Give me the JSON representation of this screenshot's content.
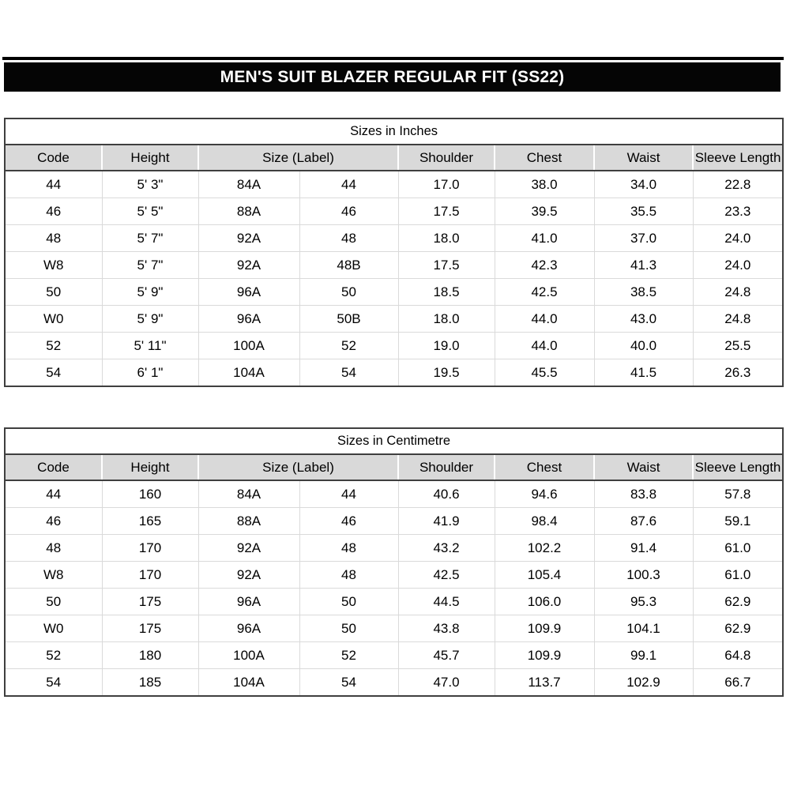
{
  "page": {
    "title": "MEN'S SUIT BLAZER REGULAR FIT (SS22)"
  },
  "colors": {
    "title_bar_bg": "#050505",
    "title_text": "#ffffff",
    "header_row_bg": "#d9d9d9",
    "grid_line": "#dadada",
    "dark_border": "#3f3f3f"
  },
  "tables": [
    {
      "caption": "Sizes in Inches",
      "headers": [
        {
          "label": "Code",
          "span": 1
        },
        {
          "label": "Height",
          "span": 1
        },
        {
          "label": "Size (Label)",
          "span": 2
        },
        {
          "label": "Shoulder",
          "span": 1
        },
        {
          "label": "Chest",
          "span": 1
        },
        {
          "label": "Waist",
          "span": 1
        },
        {
          "label": "Sleeve Length",
          "span": 1
        }
      ],
      "rows": [
        [
          "44",
          "5' 3\"",
          "84A",
          "44",
          "17.0",
          "38.0",
          "34.0",
          "22.8"
        ],
        [
          "46",
          "5' 5\"",
          "88A",
          "46",
          "17.5",
          "39.5",
          "35.5",
          "23.3"
        ],
        [
          "48",
          "5' 7\"",
          "92A",
          "48",
          "18.0",
          "41.0",
          "37.0",
          "24.0"
        ],
        [
          "W8",
          "5' 7\"",
          "92A",
          "48B",
          "17.5",
          "42.3",
          "41.3",
          "24.0"
        ],
        [
          "50",
          "5' 9\"",
          "96A",
          "50",
          "18.5",
          "42.5",
          "38.5",
          "24.8"
        ],
        [
          "W0",
          "5' 9\"",
          "96A",
          "50B",
          "18.0",
          "44.0",
          "43.0",
          "24.8"
        ],
        [
          "52",
          "5' 11\"",
          "100A",
          "52",
          "19.0",
          "44.0",
          "40.0",
          "25.5"
        ],
        [
          "54",
          "6' 1\"",
          "104A",
          "54",
          "19.5",
          "45.5",
          "41.5",
          "26.3"
        ]
      ]
    },
    {
      "caption": "Sizes in Centimetre",
      "headers": [
        {
          "label": "Code",
          "span": 1
        },
        {
          "label": "Height",
          "span": 1
        },
        {
          "label": "Size (Label)",
          "span": 2
        },
        {
          "label": "Shoulder",
          "span": 1
        },
        {
          "label": "Chest",
          "span": 1
        },
        {
          "label": "Waist",
          "span": 1
        },
        {
          "label": "Sleeve Length",
          "span": 1
        }
      ],
      "rows": [
        [
          "44",
          "160",
          "84A",
          "44",
          "40.6",
          "94.6",
          "83.8",
          "57.8"
        ],
        [
          "46",
          "165",
          "88A",
          "46",
          "41.9",
          "98.4",
          "87.6",
          "59.1"
        ],
        [
          "48",
          "170",
          "92A",
          "48",
          "43.2",
          "102.2",
          "91.4",
          "61.0"
        ],
        [
          "W8",
          "170",
          "92A",
          "48",
          "42.5",
          "105.4",
          "100.3",
          "61.0"
        ],
        [
          "50",
          "175",
          "96A",
          "50",
          "44.5",
          "106.0",
          "95.3",
          "62.9"
        ],
        [
          "W0",
          "175",
          "96A",
          "50",
          "43.8",
          "109.9",
          "104.1",
          "62.9"
        ],
        [
          "52",
          "180",
          "100A",
          "52",
          "45.7",
          "109.9",
          "99.1",
          "64.8"
        ],
        [
          "54",
          "185",
          "104A",
          "54",
          "47.0",
          "113.7",
          "102.9",
          "66.7"
        ]
      ]
    }
  ]
}
